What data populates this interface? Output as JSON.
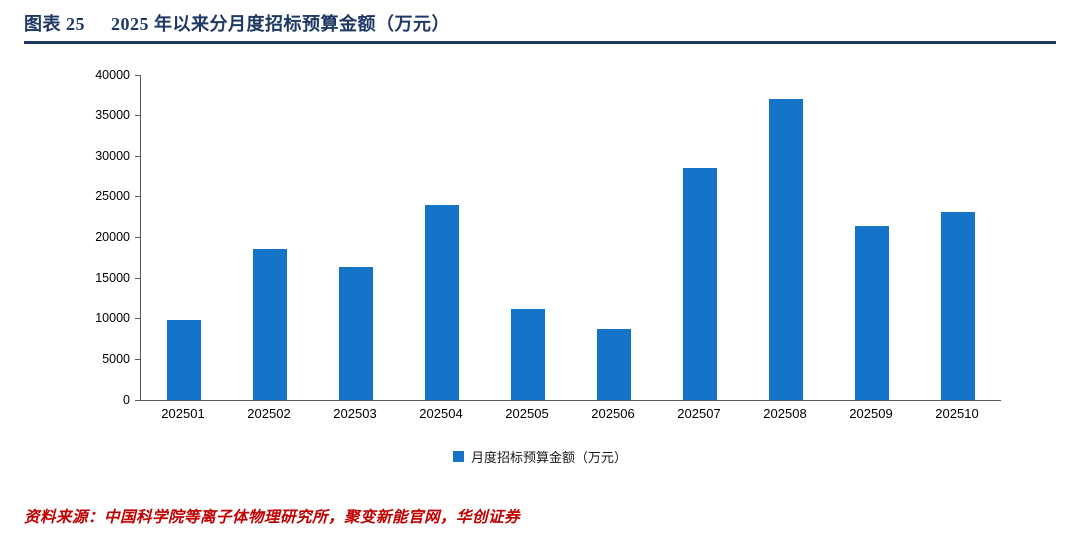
{
  "header": {
    "figure_label": "图表 25",
    "title": "2025 年以来分月度招标预算金额（万元）"
  },
  "chart_data": {
    "type": "bar",
    "title": "2025 年以来分月度招标预算金额（万元）",
    "categories": [
      "202501",
      "202502",
      "202503",
      "202504",
      "202505",
      "202506",
      "202507",
      "202508",
      "202509",
      "202510"
    ],
    "values": [
      9800,
      18600,
      16400,
      24000,
      11200,
      8700,
      28600,
      37100,
      21400,
      23100
    ],
    "xlabel": "",
    "ylabel": "",
    "ylim": [
      0,
      40000
    ],
    "ytick_step": 5000,
    "grid": false,
    "legend": [
      "月度招标预算金额（万元）"
    ],
    "legend_position": "bottom-center",
    "bar_color": "#1674C8",
    "axis_color": "#595959"
  },
  "footer": {
    "source": "资料来源：中国科学院等离子体物理研究所，聚变新能官网，华创证券"
  },
  "colors": {
    "title_navy": "#1F3864",
    "source_red": "#C00000"
  }
}
